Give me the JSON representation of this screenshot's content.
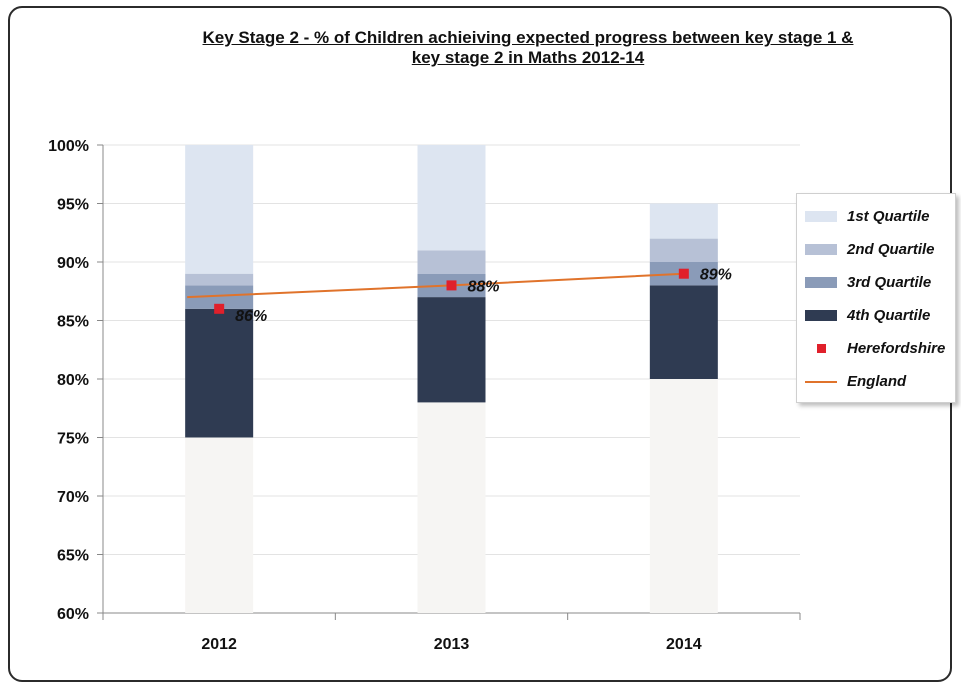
{
  "chart_data": {
    "type": "bar",
    "title_line1": "Key Stage 2 - % of Children achieiving expected progress between key stage 1 &",
    "title_line2": "key stage 2 in Maths 2012-14",
    "categories": [
      "2012",
      "2013",
      "2014"
    ],
    "ylim": [
      60,
      100
    ],
    "yticks": [
      "60%",
      "65%",
      "70%",
      "75%",
      "80%",
      "85%",
      "90%",
      "95%",
      "100%"
    ],
    "grid": true,
    "legend_position": "right",
    "stacked_series": [
      {
        "name": "4th Quartile",
        "lower": [
          75,
          78,
          80
        ],
        "upper": [
          86,
          87,
          88
        ],
        "color": "#2f3b52"
      },
      {
        "name": "3rd Quartile",
        "lower": [
          86,
          87,
          88
        ],
        "upper": [
          88,
          89,
          90
        ],
        "color": "#8a9bb8"
      },
      {
        "name": "2nd Quartile",
        "lower": [
          88,
          89,
          90
        ],
        "upper": [
          89,
          91,
          92
        ],
        "color": "#b7c1d6"
      },
      {
        "name": "1st Quartile",
        "lower": [
          89,
          91,
          92
        ],
        "upper": [
          100,
          100,
          95
        ],
        "color": "#dde5f1"
      }
    ],
    "base_color": "#f6f5f3",
    "series": [
      {
        "name": "Herefordshire",
        "type": "scatter",
        "values": [
          86,
          88,
          89
        ],
        "labels": [
          "86%",
          "88%",
          "89%"
        ],
        "color": "#e0202b"
      },
      {
        "name": "England",
        "type": "line",
        "values": [
          87,
          88,
          89
        ],
        "color": "#e0732b"
      }
    ],
    "legend": [
      "1st Quartile",
      "2nd Quartile",
      "3rd Quartile",
      "4th Quartile",
      "Herefordshire",
      "England"
    ]
  }
}
